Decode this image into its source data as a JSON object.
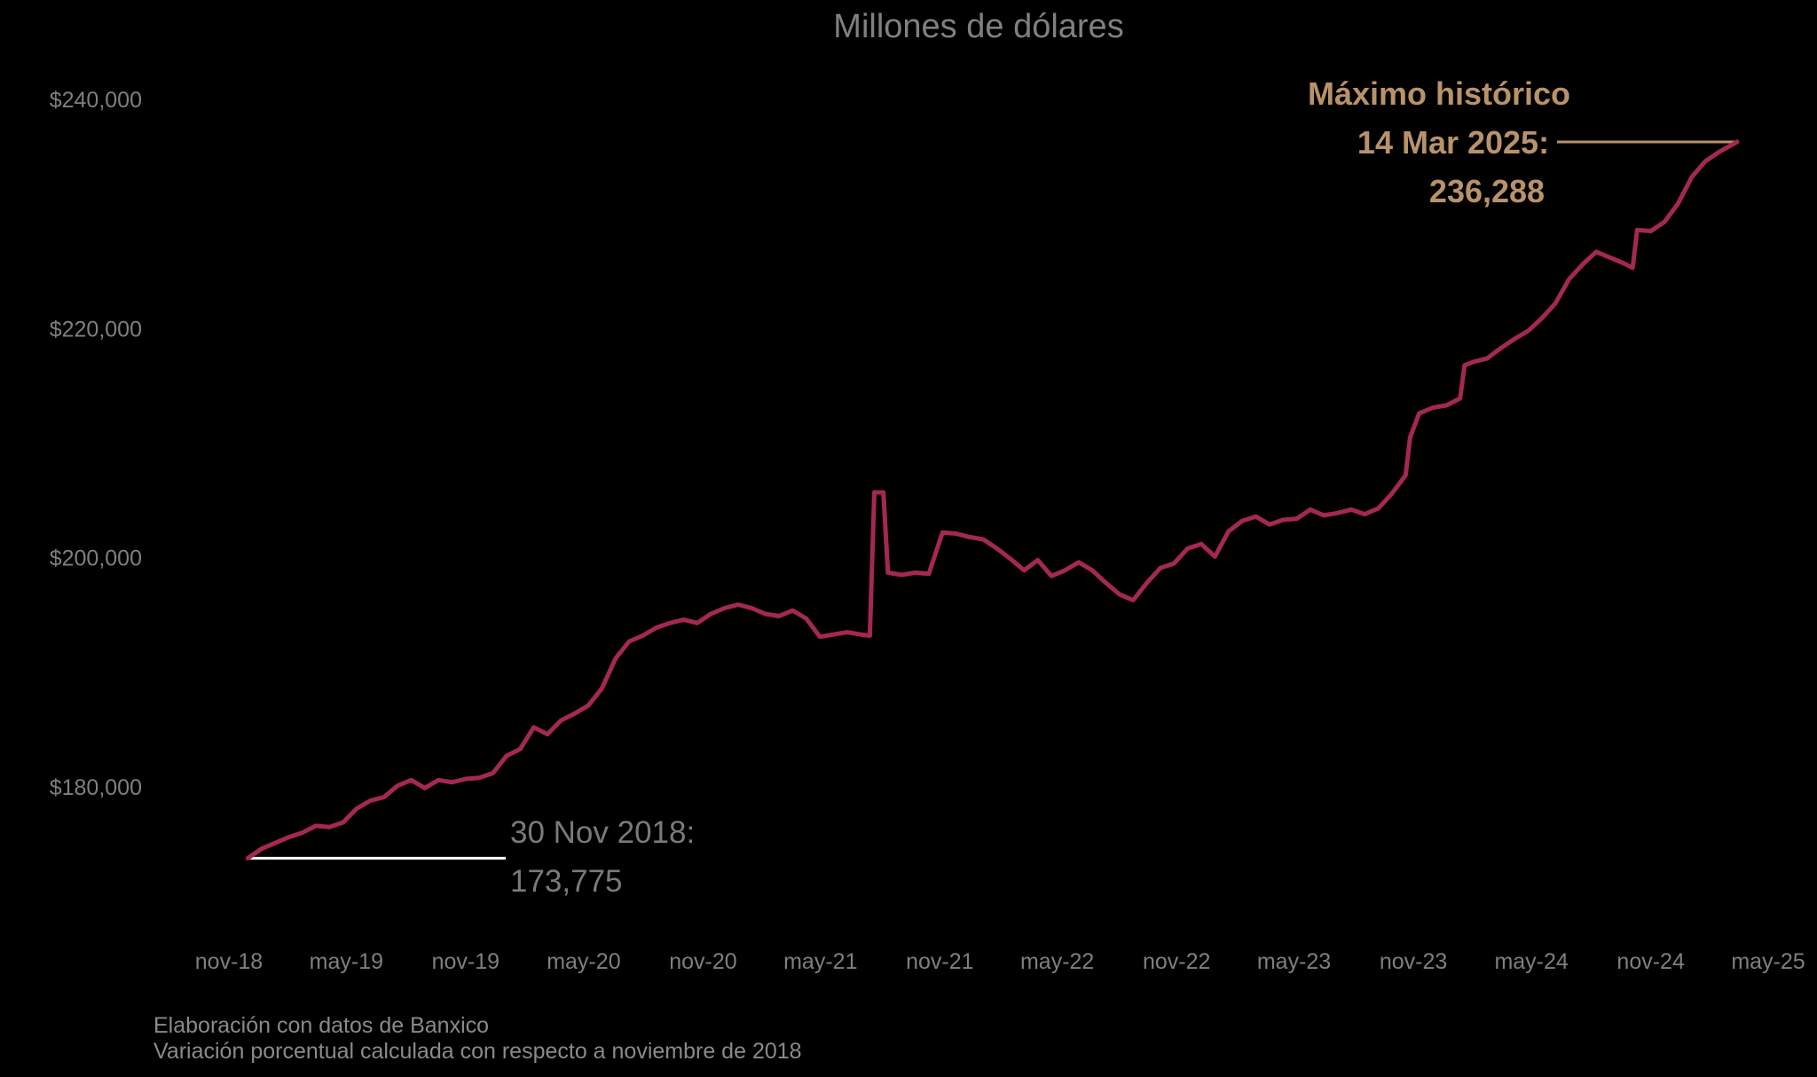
{
  "chart_data": {
    "type": "line",
    "title": "Millones de dólares",
    "xlabel": "",
    "ylabel": "",
    "ylim": [
      165000,
      245000
    ],
    "xlim": [
      "2018-11-01",
      "2025-05-01"
    ],
    "y_ticks": [
      {
        "value": 180000,
        "label": "$180,000"
      },
      {
        "value": 200000,
        "label": "$200,000"
      },
      {
        "value": 220000,
        "label": "$220,000"
      },
      {
        "value": 240000,
        "label": "$240,000"
      }
    ],
    "x_ticks": [
      {
        "date": "2018-11-01",
        "label": "nov-18"
      },
      {
        "date": "2019-05-01",
        "label": "may-19"
      },
      {
        "date": "2019-11-01",
        "label": "nov-19"
      },
      {
        "date": "2020-05-01",
        "label": "may-20"
      },
      {
        "date": "2020-11-01",
        "label": "nov-20"
      },
      {
        "date": "2021-05-01",
        "label": "may-21"
      },
      {
        "date": "2021-11-01",
        "label": "nov-21"
      },
      {
        "date": "2022-05-01",
        "label": "may-22"
      },
      {
        "date": "2022-11-01",
        "label": "nov-22"
      },
      {
        "date": "2023-05-01",
        "label": "may-23"
      },
      {
        "date": "2023-11-01",
        "label": "nov-23"
      },
      {
        "date": "2024-05-01",
        "label": "may-24"
      },
      {
        "date": "2024-11-01",
        "label": "nov-24"
      },
      {
        "date": "2025-05-01",
        "label": "may-25"
      }
    ],
    "grid": false,
    "legend": "none",
    "series": [
      {
        "color": "#a3294f",
        "points": [
          [
            "2018-11-30",
            173775
          ],
          [
            "2018-12-21",
            174600
          ],
          [
            "2019-01-11",
            175100
          ],
          [
            "2019-02-01",
            175600
          ],
          [
            "2019-02-22",
            176000
          ],
          [
            "2019-03-15",
            176600
          ],
          [
            "2019-04-05",
            176500
          ],
          [
            "2019-04-26",
            176900
          ],
          [
            "2019-05-17",
            178100
          ],
          [
            "2019-06-07",
            178800
          ],
          [
            "2019-06-28",
            179100
          ],
          [
            "2019-07-19",
            180100
          ],
          [
            "2019-08-09",
            180600
          ],
          [
            "2019-08-30",
            179900
          ],
          [
            "2019-09-20",
            180600
          ],
          [
            "2019-10-11",
            180400
          ],
          [
            "2019-11-01",
            180700
          ],
          [
            "2019-11-22",
            180800
          ],
          [
            "2019-12-13",
            181200
          ],
          [
            "2020-01-03",
            182700
          ],
          [
            "2020-01-24",
            183300
          ],
          [
            "2020-02-14",
            185200
          ],
          [
            "2020-03-06",
            184600
          ],
          [
            "2020-03-27",
            185800
          ],
          [
            "2020-04-17",
            186400
          ],
          [
            "2020-05-08",
            187100
          ],
          [
            "2020-05-29",
            188600
          ],
          [
            "2020-06-19",
            191200
          ],
          [
            "2020-07-10",
            192700
          ],
          [
            "2020-07-31",
            193200
          ],
          [
            "2020-08-21",
            193900
          ],
          [
            "2020-09-11",
            194300
          ],
          [
            "2020-10-02",
            194600
          ],
          [
            "2020-10-23",
            194300
          ],
          [
            "2020-11-13",
            195100
          ],
          [
            "2020-12-04",
            195600
          ],
          [
            "2020-12-25",
            195900
          ],
          [
            "2021-01-15",
            195600
          ],
          [
            "2021-02-05",
            195100
          ],
          [
            "2021-02-26",
            194900
          ],
          [
            "2021-03-19",
            195400
          ],
          [
            "2021-04-09",
            194700
          ],
          [
            "2021-04-30",
            193100
          ],
          [
            "2021-05-21",
            193300
          ],
          [
            "2021-06-11",
            193500
          ],
          [
            "2021-07-02",
            193300
          ],
          [
            "2021-07-16",
            193200
          ],
          [
            "2021-07-23",
            205700
          ],
          [
            "2021-08-06",
            205700
          ],
          [
            "2021-08-13",
            198700
          ],
          [
            "2021-09-03",
            198500
          ],
          [
            "2021-09-24",
            198700
          ],
          [
            "2021-10-15",
            198600
          ],
          [
            "2021-11-05",
            202200
          ],
          [
            "2021-11-26",
            202100
          ],
          [
            "2021-12-17",
            201800
          ],
          [
            "2022-01-07",
            201600
          ],
          [
            "2022-01-28",
            200800
          ],
          [
            "2022-02-18",
            199900
          ],
          [
            "2022-03-11",
            198900
          ],
          [
            "2022-04-01",
            199800
          ],
          [
            "2022-04-22",
            198400
          ],
          [
            "2022-05-13",
            198900
          ],
          [
            "2022-06-03",
            199600
          ],
          [
            "2022-06-24",
            198900
          ],
          [
            "2022-07-15",
            197800
          ],
          [
            "2022-08-05",
            196800
          ],
          [
            "2022-08-26",
            196300
          ],
          [
            "2022-09-16",
            197800
          ],
          [
            "2022-10-07",
            199100
          ],
          [
            "2022-10-28",
            199500
          ],
          [
            "2022-11-18",
            200800
          ],
          [
            "2022-12-09",
            201200
          ],
          [
            "2022-12-30",
            200100
          ],
          [
            "2023-01-20",
            202300
          ],
          [
            "2023-02-10",
            203200
          ],
          [
            "2023-03-03",
            203600
          ],
          [
            "2023-03-24",
            202900
          ],
          [
            "2023-04-14",
            203300
          ],
          [
            "2023-05-05",
            203400
          ],
          [
            "2023-05-26",
            204200
          ],
          [
            "2023-06-16",
            203700
          ],
          [
            "2023-07-07",
            203900
          ],
          [
            "2023-07-28",
            204200
          ],
          [
            "2023-08-18",
            203800
          ],
          [
            "2023-09-08",
            204300
          ],
          [
            "2023-09-29",
            205600
          ],
          [
            "2023-10-20",
            207200
          ],
          [
            "2023-10-27",
            210500
          ],
          [
            "2023-11-10",
            212600
          ],
          [
            "2023-12-01",
            213100
          ],
          [
            "2023-12-22",
            213300
          ],
          [
            "2024-01-12",
            213900
          ],
          [
            "2024-01-19",
            216800
          ],
          [
            "2024-02-02",
            217100
          ],
          [
            "2024-02-23",
            217400
          ],
          [
            "2024-03-15",
            218300
          ],
          [
            "2024-04-05",
            219100
          ],
          [
            "2024-04-26",
            219800
          ],
          [
            "2024-05-17",
            220900
          ],
          [
            "2024-06-07",
            222200
          ],
          [
            "2024-06-28",
            224300
          ],
          [
            "2024-07-19",
            225600
          ],
          [
            "2024-08-09",
            226700
          ],
          [
            "2024-08-30",
            226200
          ],
          [
            "2024-09-20",
            225700
          ],
          [
            "2024-10-04",
            225300
          ],
          [
            "2024-10-11",
            228600
          ],
          [
            "2024-11-01",
            228500
          ],
          [
            "2024-11-22",
            229300
          ],
          [
            "2024-12-13",
            230900
          ],
          [
            "2025-01-03",
            233200
          ],
          [
            "2025-01-24",
            234600
          ],
          [
            "2025-02-14",
            235400
          ],
          [
            "2025-03-14",
            236288
          ]
        ]
      }
    ],
    "annotations": [
      {
        "date": "2018-11-30",
        "value": 173775,
        "text": [
          "30 Nov 2018:",
          "173,775"
        ],
        "color": "#7a7a7a"
      },
      {
        "date": "2025-03-14",
        "value": 236288,
        "text": [
          "Máximo histórico",
          "14 Mar 2025:",
          "236,288"
        ],
        "color": "#b8926a"
      }
    ],
    "notes": [
      "Elaboración con datos de Banxico",
      "Variación porcentual calculada con respecto a noviembre de 2018"
    ]
  }
}
